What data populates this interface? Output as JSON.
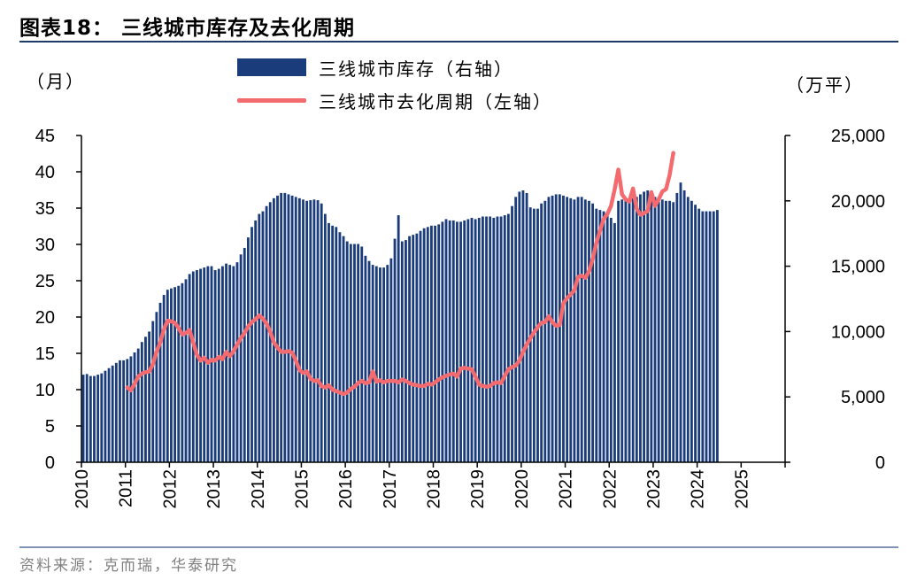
{
  "header": {
    "title": "图表18：  三线城市库存及去化周期"
  },
  "units": {
    "left": "（月）",
    "right": "（万平）"
  },
  "legend": {
    "bar_label": "三线城市库存（右轴）",
    "line_label": "三线城市去化周期（左轴）"
  },
  "footer": {
    "source": "资料来源：克而瑞，华泰研究"
  },
  "colors": {
    "bar": "#1a3c7b",
    "line": "#f36b6f",
    "axis": "#000000"
  },
  "chart_data": {
    "type": "bar+line",
    "x_tick_labels": [
      "2010",
      "2011",
      "2012",
      "2013",
      "2014",
      "2015",
      "2016",
      "2017",
      "2018",
      "2019",
      "2020",
      "2021",
      "2022",
      "2023",
      "2024",
      "2025"
    ],
    "y_left": {
      "label": "（月）",
      "range": [
        0,
        45
      ],
      "ticks": [
        0,
        5,
        10,
        15,
        20,
        25,
        30,
        35,
        40,
        45
      ]
    },
    "y_right": {
      "label": "（万平）",
      "range": [
        0,
        25000
      ],
      "ticks": [
        0,
        5000,
        10000,
        15000,
        20000,
        25000
      ],
      "tick_labels": [
        "0",
        "5,000",
        "10,000",
        "15,000",
        "20,000",
        "25,000"
      ]
    },
    "grid": false,
    "legend_position": "top-center",
    "series": [
      {
        "name": "三线城市库存（右轴）",
        "type": "bar",
        "axis": "right",
        "start": "2010-01",
        "frequency": "monthly",
        "values": [
          6700,
          6750,
          6600,
          6600,
          6700,
          6800,
          7000,
          7200,
          7400,
          7600,
          7800,
          7800,
          7900,
          8100,
          8400,
          8700,
          9200,
          9600,
          10000,
          10800,
          11500,
          12200,
          12800,
          13200,
          13300,
          13400,
          13500,
          13700,
          14000,
          14400,
          14600,
          14700,
          14800,
          14900,
          15000,
          15000,
          14700,
          14800,
          15000,
          15200,
          15100,
          15000,
          15300,
          15900,
          16400,
          17200,
          18000,
          18500,
          19000,
          19200,
          19600,
          19900,
          20200,
          20400,
          20600,
          20600,
          20500,
          20400,
          20300,
          20200,
          20100,
          20000,
          20050,
          20100,
          20050,
          19800,
          19000,
          18300,
          18100,
          18000,
          17600,
          17300,
          16900,
          16700,
          16700,
          16700,
          16500,
          15800,
          15400,
          15100,
          15000,
          14900,
          14900,
          15100,
          15600,
          17100,
          18900,
          16900,
          17000,
          17300,
          17400,
          17500,
          17700,
          17900,
          18000,
          18100,
          18100,
          18200,
          18400,
          18600,
          18500,
          18500,
          18400,
          18400,
          18500,
          18600,
          18700,
          18600,
          18700,
          18800,
          18800,
          18800,
          18700,
          18800,
          18800,
          18900,
          19000,
          19600,
          20300,
          20700,
          20800,
          20600,
          19500,
          19400,
          19400,
          19800,
          20000,
          20300,
          20400,
          20500,
          20500,
          20400,
          20300,
          20200,
          20100,
          20300,
          20300,
          20100,
          20000,
          19800,
          19400,
          19300,
          19200,
          18900,
          18700,
          18300,
          20000,
          20100,
          20100,
          20100,
          20200,
          20300,
          20500,
          20700,
          20800,
          20600,
          20300,
          20300,
          20100,
          20000,
          20000,
          19900,
          20600,
          21400,
          20800,
          20300,
          20000,
          19700,
          19400,
          19200,
          19200,
          19200,
          19200,
          19300
        ]
      },
      {
        "name": "三线城市去化周期（左轴）",
        "type": "line",
        "axis": "left",
        "start": "2011-01",
        "frequency": "monthly",
        "values": [
          10.3,
          9.9,
          10.8,
          11.8,
          12.2,
          12.4,
          12.5,
          13.5,
          15.2,
          16.5,
          18.3,
          19.5,
          19.4,
          19.2,
          18.5,
          17.6,
          17.8,
          18.2,
          16.5,
          14.8,
          14.0,
          14.4,
          13.7,
          14.1,
          14.0,
          14.5,
          14.2,
          15.2,
          14.6,
          15.3,
          16.2,
          17.1,
          17.8,
          18.7,
          19.3,
          19.7,
          20.2,
          19.8,
          19.1,
          18.0,
          16.5,
          15.8,
          15.2,
          15.2,
          15.3,
          15.1,
          14.0,
          12.7,
          12.3,
          12.5,
          11.5,
          11.2,
          11.3,
          10.5,
          10.3,
          10.6,
          10.0,
          9.8,
          9.6,
          9.4,
          9.6,
          10.1,
          10.4,
          10.9,
          11.2,
          10.9,
          11.0,
          12.5,
          11.1,
          11.3,
          11.0,
          11.2,
          11.2,
          11.2,
          11.0,
          11.4,
          11.2,
          10.9,
          10.7,
          10.6,
          10.5,
          10.5,
          10.8,
          10.7,
          11.0,
          11.4,
          11.7,
          11.9,
          12.1,
          12.2,
          11.8,
          12.9,
          13.0,
          12.9,
          12.8,
          11.8,
          10.7,
          10.5,
          10.4,
          10.5,
          10.9,
          11.0,
          10.9,
          11.9,
          12.8,
          13.1,
          13.3,
          14.0,
          15.2,
          16.2,
          17.1,
          17.9,
          18.6,
          19.2,
          19.3,
          20.1,
          19.3,
          18.8,
          18.9,
          21.9,
          22.6,
          23.1,
          23.7,
          25.5,
          25.7,
          25.4,
          26.3,
          28.0,
          30.2,
          31.9,
          33.5,
          34.2,
          35.3,
          37.6,
          40.3,
          36.9,
          36.2,
          35.9,
          37.7,
          34.9,
          34.1,
          34.3,
          34.6,
          37.2,
          35.3,
          36.2,
          37.3,
          37.6,
          39.6,
          42.6
        ]
      }
    ]
  }
}
